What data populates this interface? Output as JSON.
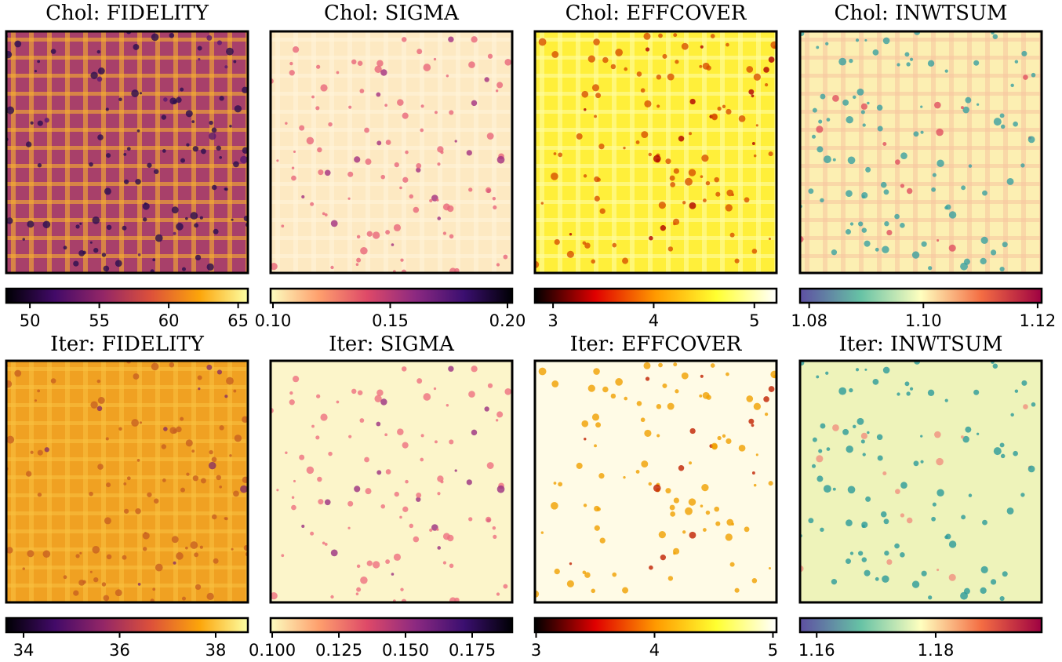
{
  "chart_data": [
    {
      "type": "image",
      "title": "Chol: FIDELITY",
      "colors": [
        "#000004",
        "#420a68",
        "#932667",
        "#dd513a",
        "#fca50a",
        "#fcffa4"
      ],
      "clim": [
        48.3,
        65.7
      ],
      "cticks": [
        50,
        55,
        60,
        65
      ]
    },
    {
      "type": "image",
      "title": "Chol: SIGMA",
      "colors": [
        "#fcfdbf",
        "#fe9f6d",
        "#de4968",
        "#8c2981",
        "#3b0f70",
        "#000004"
      ],
      "clim": [
        0.099,
        0.202
      ],
      "cticks": [
        {
          "value": 0.1,
          "label": "0.10"
        },
        0.15,
        {
          "value": 0.2,
          "label": "0.20"
        }
      ]
    },
    {
      "type": "image",
      "title": "Chol: EFFCOVER",
      "colors": [
        "#000000",
        "#e00000",
        "#ff9a00",
        "#ffff30",
        "#ffffff"
      ],
      "clim": [
        2.82,
        5.22
      ],
      "cticks": [
        3,
        4,
        5
      ]
    },
    {
      "type": "image",
      "title": "Chol: INWTSUM",
      "colors": [
        "#5e4fa2",
        "#66c2a5",
        "#ffffbf",
        "#f46d43",
        "#9e0142"
      ],
      "clim": [
        1.0784,
        1.1207
      ],
      "cticks": [
        1.08,
        {
          "value": 1.1,
          "label": "1.10"
        },
        1.12
      ]
    },
    {
      "type": "image",
      "title": "Iter: FIDELITY",
      "colors": [
        "#000004",
        "#420a68",
        "#932667",
        "#dd513a",
        "#fca50a",
        "#fcffa4"
      ],
      "clim": [
        33.64,
        38.67
      ],
      "cticks": [
        34,
        36,
        38
      ]
    },
    {
      "type": "image",
      "title": "Iter: SIGMA",
      "colors": [
        "#fcfdbf",
        "#fe9f6d",
        "#de4968",
        "#8c2981",
        "#3b0f70",
        "#000004"
      ],
      "clim": [
        0.0994,
        0.19
      ],
      "cticks": [
        {
          "value": 0.1,
          "label": "0.100"
        },
        0.125,
        {
          "value": 0.15,
          "label": "0.150"
        },
        0.175
      ]
    },
    {
      "type": "image",
      "title": "Iter: EFFCOVER",
      "colors": [
        "#000000",
        "#e00000",
        "#ff9a00",
        "#ffff30",
        "#ffffff"
      ],
      "clim": [
        2.99,
        5.03
      ],
      "cticks": [
        3,
        4,
        5
      ]
    },
    {
      "type": "image",
      "title": "Iter: INWTSUM",
      "colors": [
        "#5e4fa2",
        "#66c2a5",
        "#ffffbf",
        "#f46d43",
        "#9e0142"
      ],
      "clim": [
        1.1572,
        1.1978
      ],
      "cticks": [
        1.16,
        1.18
      ]
    }
  ]
}
